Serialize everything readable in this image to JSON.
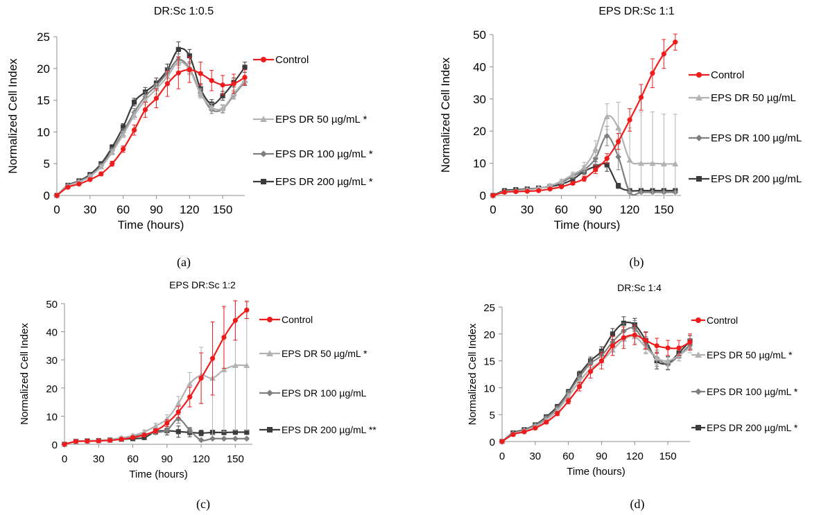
{
  "figure": {
    "panel_tags": [
      "(a)",
      "(b)",
      "(c)",
      "(d)"
    ]
  },
  "colors": {
    "Control": "#ee1c1c",
    "EPS DR 50 µg/mL": "#b2b2b2",
    "EPS DR 100 µg/mL": "#7f7f7f",
    "EPS DR 200 µg/mL": "#3b3b3b"
  },
  "chart_data": [
    {
      "type": "line",
      "title": "DR:Sc 1:0.5",
      "xlabel": "Time (hours)",
      "ylabel": "Normalized Cell Index",
      "xlim": [
        0,
        170
      ],
      "ylim": [
        0,
        25
      ],
      "xticks": [
        0,
        30,
        60,
        90,
        120,
        150
      ],
      "yticks": [
        0,
        5,
        10,
        15,
        20,
        25
      ],
      "panel_tag": "(a)",
      "x": [
        0,
        10,
        20,
        30,
        40,
        50,
        60,
        70,
        80,
        90,
        100,
        110,
        120,
        130,
        140,
        150,
        160,
        170
      ],
      "series": [
        {
          "name": "Control",
          "legend": "Control",
          "marker": "circle",
          "values": [
            0,
            1.3,
            1.8,
            2.5,
            3.4,
            5.0,
            7.3,
            10.3,
            13.5,
            15.3,
            17.6,
            19.3,
            19.8,
            19.2,
            18.1,
            17.4,
            17.6,
            18.6
          ],
          "errors": [
            0,
            0.2,
            0.2,
            0.2,
            0.3,
            0.4,
            0.5,
            0.8,
            1.2,
            1.5,
            2.0,
            2.5,
            2.0,
            1.8,
            1.6,
            1.5,
            1.5,
            1.2
          ]
        },
        {
          "name": "EPS DR 50 µg/mL",
          "legend": "EPS DR 50 µg/mL *",
          "marker": "triangle",
          "values": [
            0,
            1.5,
            2.1,
            3.0,
            4.5,
            6.8,
            9.6,
            12.6,
            15.0,
            16.8,
            18.7,
            21.0,
            19.8,
            16.0,
            13.9,
            13.7,
            16.0,
            18.1
          ],
          "errors": [
            0,
            0.2,
            0.2,
            0.2,
            0.3,
            0.4,
            0.5,
            0.6,
            0.7,
            0.8,
            0.8,
            0.9,
            0.8,
            0.7,
            0.6,
            0.6,
            0.6,
            0.6
          ]
        },
        {
          "name": "EPS DR 100 µg/mL",
          "legend": "EPS DR 100 µg/mL *",
          "marker": "diamond",
          "values": [
            0,
            1.5,
            2.2,
            3.1,
            4.7,
            7.1,
            10.0,
            13.1,
            15.6,
            17.3,
            19.3,
            21.4,
            20.0,
            16.2,
            13.5,
            13.6,
            15.8,
            17.9
          ],
          "errors": [
            0,
            0.2,
            0.2,
            0.2,
            0.3,
            0.4,
            0.5,
            0.6,
            0.7,
            0.8,
            0.8,
            0.9,
            0.8,
            0.7,
            0.6,
            0.6,
            0.6,
            0.6
          ]
        },
        {
          "name": "EPS DR 200 µg/mL",
          "legend": "EPS DR 200 µg/mL *",
          "marker": "square",
          "values": [
            0,
            1.6,
            2.3,
            3.3,
            5.0,
            7.6,
            10.8,
            14.7,
            16.3,
            17.7,
            19.8,
            23.0,
            22.0,
            16.8,
            14.4,
            15.7,
            17.8,
            20.2
          ],
          "errors": [
            0,
            0.2,
            0.2,
            0.2,
            0.3,
            0.4,
            0.5,
            0.6,
            0.7,
            0.8,
            0.9,
            1.2,
            1.0,
            0.8,
            0.7,
            0.7,
            0.7,
            0.8
          ]
        }
      ]
    },
    {
      "type": "line",
      "title": "EPS DR:Sc 1:1",
      "xlabel": "Time (hours)",
      "ylabel": "Normalized Cell Index",
      "xlim": [
        0,
        165
      ],
      "ylim": [
        0,
        50
      ],
      "xticks": [
        0,
        30,
        60,
        90,
        120,
        150
      ],
      "yticks": [
        0,
        10,
        20,
        30,
        40,
        50
      ],
      "panel_tag": "(b)",
      "x": [
        0,
        10,
        20,
        30,
        40,
        50,
        60,
        70,
        80,
        90,
        100,
        110,
        120,
        130,
        140,
        150,
        160
      ],
      "series": [
        {
          "name": "Control",
          "legend": "Control",
          "marker": "circle",
          "values": [
            0,
            1.0,
            1.2,
            1.3,
            1.5,
            2.0,
            2.7,
            3.8,
            5.2,
            8.0,
            11.5,
            16.8,
            23.5,
            30.5,
            38.0,
            44.0,
            47.7
          ],
          "errors": [
            0,
            0.2,
            0.2,
            0.2,
            0.2,
            0.3,
            0.4,
            0.5,
            0.8,
            1.2,
            1.5,
            2.5,
            3.5,
            4.0,
            4.5,
            4.5,
            2.5
          ]
        },
        {
          "name": "EPS DR 50 µg/mL",
          "legend": "EPS DR 50 µg/mL",
          "marker": "triangle",
          "values": [
            0,
            1.2,
            1.5,
            1.8,
            2.2,
            3.0,
            4.5,
            6.5,
            8.8,
            14.5,
            24.5,
            21.0,
            11.0,
            10.0,
            10.0,
            9.8,
            9.8
          ],
          "errors": [
            0,
            0.2,
            0.2,
            0.3,
            0.3,
            0.4,
            0.5,
            0.8,
            1.5,
            2.5,
            4.0,
            8.0,
            10.0,
            16.0,
            16.0,
            15.5,
            15.5
          ]
        },
        {
          "name": "EPS DR 100 µg/mL",
          "legend": "EPS DR 100 µg/mL",
          "marker": "diamond",
          "values": [
            0,
            1.2,
            1.5,
            1.8,
            2.2,
            3.0,
            4.0,
            6.0,
            8.0,
            11.5,
            18.5,
            12.0,
            1.0,
            1.0,
            1.0,
            1.0,
            1.0
          ],
          "errors": [
            0,
            0.2,
            0.2,
            0.3,
            0.3,
            0.4,
            0.5,
            0.8,
            1.2,
            2.0,
            3.0,
            4.0,
            0.3,
            0.3,
            0.3,
            0.3,
            0.3
          ]
        },
        {
          "name": "EPS DR 200 µg/mL",
          "legend": "EPS DR 200 µg/mL",
          "marker": "square",
          "values": [
            0,
            1.5,
            1.8,
            2.0,
            2.3,
            2.8,
            3.5,
            5.0,
            7.5,
            9.0,
            9.5,
            3.0,
            1.5,
            1.5,
            1.5,
            1.5,
            1.5
          ],
          "errors": [
            0,
            0.2,
            0.2,
            0.3,
            0.3,
            0.4,
            0.5,
            0.8,
            1.0,
            1.5,
            2.0,
            0.8,
            0.4,
            0.4,
            0.4,
            0.4,
            0.4
          ]
        }
      ]
    },
    {
      "type": "line",
      "title": "EPS DR:Sc 1:2",
      "xlabel": "Time (hours)",
      "ylabel": "Normalized Cell Index",
      "xlim": [
        0,
        165
      ],
      "ylim": [
        0,
        50
      ],
      "xticks": [
        0,
        30,
        60,
        90,
        120,
        150
      ],
      "yticks": [
        0,
        10,
        20,
        30,
        40,
        50
      ],
      "panel_tag": "(c)",
      "x": [
        0,
        10,
        20,
        30,
        40,
        50,
        60,
        70,
        80,
        90,
        100,
        110,
        120,
        130,
        140,
        150,
        160
      ],
      "series": [
        {
          "name": "Control",
          "legend": "Control",
          "marker": "circle",
          "values": [
            0,
            1.0,
            1.1,
            1.2,
            1.4,
            1.8,
            2.4,
            3.3,
            4.8,
            7.5,
            11.5,
            16.8,
            23.5,
            30.5,
            38.0,
            44.0,
            47.7
          ],
          "errors": [
            0,
            0.2,
            0.2,
            0.2,
            0.2,
            0.3,
            0.4,
            0.5,
            0.8,
            1.2,
            2.0,
            3.5,
            9.0,
            13.0,
            11.0,
            7.0,
            3.0
          ]
        },
        {
          "name": "EPS DR 50 µg/mL",
          "legend": "EPS DR 50 µg/mL *",
          "marker": "triangle",
          "values": [
            0,
            1.0,
            1.2,
            1.4,
            1.7,
            2.3,
            3.1,
            4.4,
            6.5,
            9.0,
            14.5,
            21.5,
            24.5,
            23.5,
            26.5,
            28.0,
            28.0
          ],
          "errors": [
            0,
            0.2,
            0.2,
            0.2,
            0.3,
            0.4,
            0.5,
            0.7,
            1.0,
            1.5,
            2.5,
            4.0,
            10.0,
            20.0,
            22.0,
            23.0,
            23.0
          ]
        },
        {
          "name": "EPS DR 100 µg/mL",
          "legend": "EPS DR 100 µg/mL",
          "marker": "diamond",
          "values": [
            0,
            1.0,
            1.2,
            1.4,
            1.7,
            2.2,
            2.8,
            3.5,
            4.2,
            5.0,
            9.0,
            5.0,
            1.5,
            2.0,
            2.0,
            2.0,
            2.0
          ],
          "errors": [
            0,
            0.2,
            0.2,
            0.2,
            0.3,
            0.3,
            0.4,
            0.5,
            0.6,
            0.8,
            1.5,
            1.0,
            0.4,
            0.4,
            0.4,
            0.4,
            0.4
          ]
        },
        {
          "name": "EPS DR 200 µg/mL",
          "legend": "EPS DR 200 µg/mL **",
          "marker": "square",
          "values": [
            0,
            1.0,
            1.2,
            1.3,
            1.5,
            1.8,
            2.0,
            2.4,
            4.5,
            4.8,
            4.5,
            4.2,
            4.0,
            4.2,
            4.2,
            4.3,
            4.3
          ],
          "errors": [
            0,
            0.2,
            0.2,
            0.2,
            0.2,
            0.3,
            0.3,
            0.4,
            1.0,
            1.5,
            2.0,
            1.5,
            1.0,
            0.8,
            0.8,
            0.8,
            0.8
          ]
        }
      ]
    },
    {
      "type": "line",
      "title": "DR:Sc 1:4",
      "xlabel": "Time (hours)",
      "ylabel": "Normalized Cell Index",
      "xlim": [
        0,
        170
      ],
      "ylim": [
        0,
        25
      ],
      "xticks": [
        0,
        30,
        60,
        90,
        120,
        150
      ],
      "yticks": [
        0,
        5,
        10,
        15,
        20,
        25
      ],
      "panel_tag": "(d)",
      "x": [
        0,
        10,
        20,
        30,
        40,
        50,
        60,
        70,
        80,
        90,
        100,
        110,
        120,
        130,
        140,
        150,
        160,
        170
      ],
      "series": [
        {
          "name": "Control",
          "legend": "Control",
          "marker": "circle",
          "values": [
            0,
            1.3,
            1.8,
            2.5,
            3.6,
            5.2,
            7.5,
            10.2,
            13.0,
            15.0,
            17.8,
            19.3,
            19.8,
            18.8,
            17.8,
            17.4,
            17.4,
            18.5
          ],
          "errors": [
            0,
            0.2,
            0.2,
            0.2,
            0.3,
            0.4,
            0.5,
            0.8,
            1.2,
            1.5,
            1.8,
            2.0,
            1.8,
            1.6,
            1.4,
            1.4,
            1.4,
            1.5
          ]
        },
        {
          "name": "EPS DR 50 µg/mL",
          "legend": "EPS DR 50 µg/mL *",
          "marker": "triangle",
          "values": [
            0,
            1.4,
            2.0,
            2.8,
            4.0,
            5.8,
            8.4,
            11.2,
            13.5,
            15.0,
            17.0,
            19.0,
            19.5,
            17.5,
            15.5,
            15.0,
            16.0,
            17.5
          ],
          "errors": [
            0,
            0.2,
            0.2,
            0.2,
            0.3,
            0.4,
            0.5,
            0.6,
            0.7,
            0.8,
            1.0,
            1.2,
            1.2,
            1.2,
            1.2,
            1.0,
            1.0,
            1.0
          ]
        },
        {
          "name": "EPS DR 100 µg/mL",
          "legend": "EPS DR 100 µg/mL *",
          "marker": "diamond",
          "values": [
            0,
            1.5,
            2.1,
            3.0,
            4.4,
            6.2,
            9.0,
            12.0,
            14.5,
            16.0,
            18.5,
            20.5,
            21.0,
            18.0,
            15.5,
            14.5,
            16.0,
            18.0
          ],
          "errors": [
            0,
            0.2,
            0.2,
            0.2,
            0.3,
            0.4,
            0.5,
            0.6,
            0.7,
            0.8,
            1.0,
            1.5,
            1.5,
            1.5,
            1.5,
            1.2,
            1.0,
            1.0
          ]
        },
        {
          "name": "EPS DR 200 µg/mL",
          "legend": "EPS DR 200 µg/mL *",
          "marker": "square",
          "values": [
            0,
            1.6,
            2.2,
            3.1,
            4.6,
            6.5,
            9.2,
            12.5,
            15.0,
            16.8,
            20.0,
            22.0,
            21.7,
            18.8,
            15.0,
            14.6,
            16.5,
            18.7
          ],
          "errors": [
            0,
            0.2,
            0.2,
            0.2,
            0.3,
            0.4,
            0.5,
            0.6,
            0.7,
            0.8,
            1.0,
            1.2,
            1.2,
            1.5,
            1.5,
            1.2,
            1.0,
            1.0
          ]
        }
      ]
    }
  ]
}
